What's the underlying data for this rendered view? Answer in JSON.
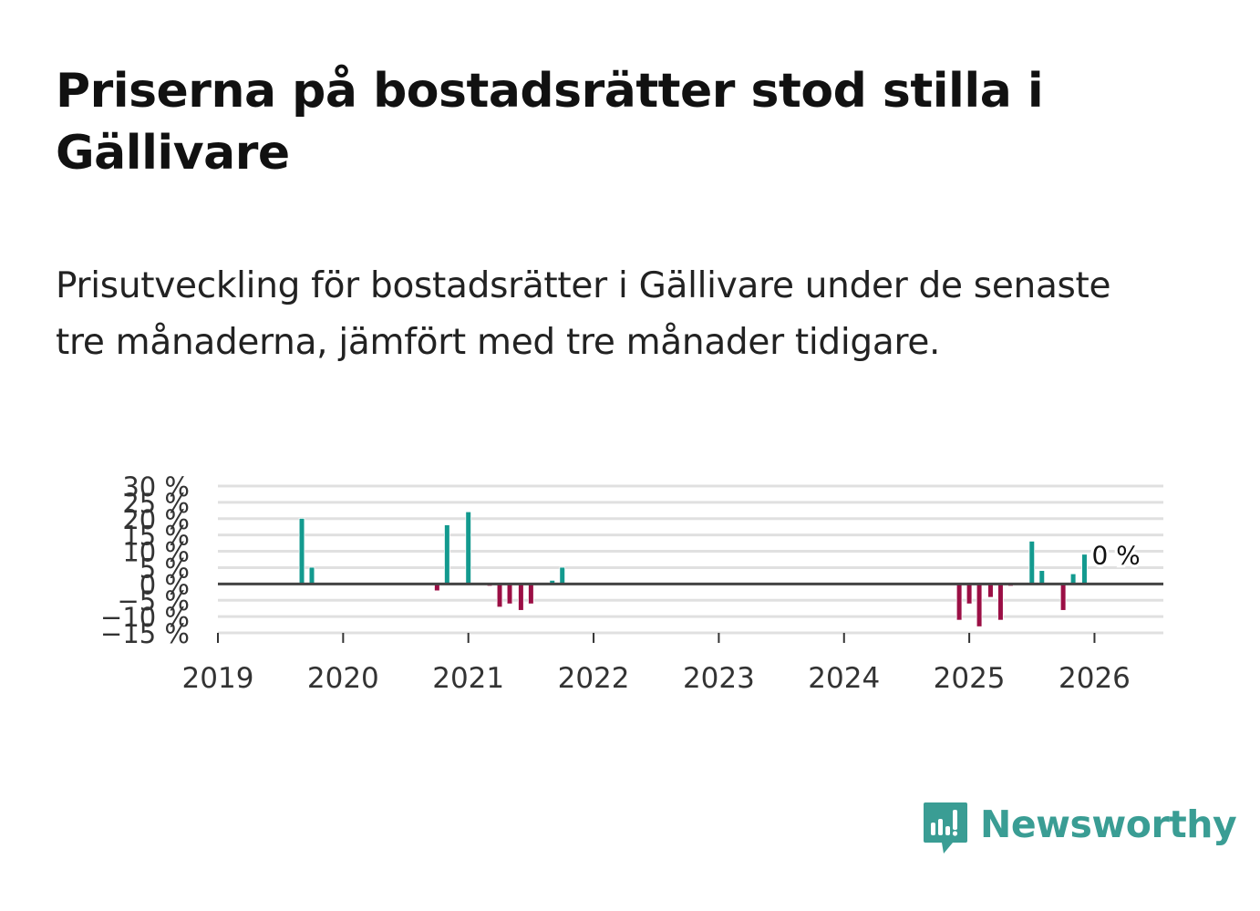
{
  "header": {
    "title": "Priserna på bostadsrätter stod stilla i Gällivare",
    "subtitle": "Prisutveckling för bostadsrätter i Gällivare under de senaste tre månaderna, jämfört med tre månader tidigare."
  },
  "brand": {
    "name": "Newsworthy",
    "color": "#3a9d94"
  },
  "colors": {
    "positive": "#139a8f",
    "negative": "#9b0f45",
    "grid": "#e0e0e0",
    "zero_line": "#444444",
    "axis_text": "#333333"
  },
  "chart_data": {
    "type": "bar",
    "title": "Priserna på bostadsrätter stod stilla i Gällivare",
    "xlabel": "",
    "ylabel": "",
    "x_unit": "year",
    "xlim": [
      2019.0,
      2026.55
    ],
    "ylim": [
      -15,
      30
    ],
    "y_ticks": [
      30,
      25,
      20,
      15,
      10,
      5,
      0,
      -5,
      -10,
      -15
    ],
    "y_tick_labels": [
      "30 %",
      "25 %",
      "20 %",
      "15 %",
      "10 %",
      "5 %",
      "0 %",
      "−5 %",
      "−10 %",
      "−15 %"
    ],
    "x_ticks": [
      2019,
      2020,
      2021,
      2022,
      2023,
      2024,
      2025,
      2026
    ],
    "x_tick_labels": [
      "2019",
      "2020",
      "2021",
      "2022",
      "2023",
      "2024",
      "2025",
      "2026"
    ],
    "grid": true,
    "annotation": {
      "x": 2026.0,
      "y": 0,
      "label": "0 %"
    },
    "x": [
      2019.67,
      2019.75,
      2020.75,
      2020.83,
      2021.0,
      2021.17,
      2021.25,
      2021.33,
      2021.42,
      2021.5,
      2021.67,
      2021.75,
      2024.92,
      2025.0,
      2025.08,
      2025.17,
      2025.25,
      2025.33,
      2025.5,
      2025.58,
      2025.75,
      2025.83,
      2025.92,
      2026.0
    ],
    "values": [
      20,
      5,
      -2,
      18,
      22,
      -0.5,
      -7,
      -6,
      -8,
      -6,
      1,
      5,
      -11,
      -6,
      -13,
      -4,
      -11,
      -0.5,
      13,
      4,
      -8,
      3,
      9,
      0
    ]
  }
}
